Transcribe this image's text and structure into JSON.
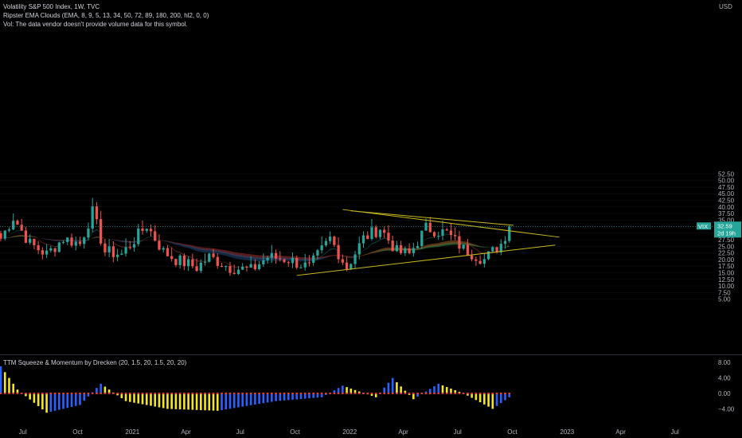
{
  "legend": {
    "title": "Volatility S&P 500 Index, 1W, TVC",
    "indicator": "Ripster EMA Clouds (EMA, 8, 9, 5, 13, 34, 50, 72, 89, 180, 200, hl2, 0, 0)",
    "volume": "Vol: The data vendor doesn't provide volume data for this symbol.",
    "oscillator": "TTM Squeeze & Momentum by Drecken (20, 1.5, 20, 1.5, 20, 20)"
  },
  "currency": "USD",
  "price_axis": [
    "52.50",
    "50.00",
    "47.50",
    "45.00",
    "42.50",
    "40.00",
    "37.50",
    "35.00",
    "32.50",
    "30.00",
    "27.50",
    "25.00",
    "22.50",
    "20.00",
    "17.50",
    "15.00",
    "12.50",
    "10.00",
    "7.50",
    "5.00"
  ],
  "osc_axis": [
    "8.00",
    "4.00",
    "0.00",
    "−4.00"
  ],
  "time_axis": [
    "Jul",
    "Oct",
    "2021",
    "Apr",
    "Jul",
    "Oct",
    "2022",
    "Apr",
    "Jul",
    "Oct",
    "2023",
    "Apr",
    "Jul"
  ],
  "last_price": {
    "symbol": "VIX",
    "value": "32.59",
    "countdown": "2d 19h"
  },
  "colors": {
    "background": "#000000",
    "up": "#26a69a",
    "down": "#ef5350",
    "trendline": "#c8b820",
    "osc_yellow": "#f5e625",
    "osc_blue": "#2962ff",
    "osc_red": "#e53935",
    "ema_blue": "#1e4a7a",
    "ema_orange": "#a0602a"
  },
  "chart_data": {
    "type": "candlestick",
    "series": [
      {
        "name": "Volatility S&P 500 Index, 1W, TVC",
        "type": "candlestick",
        "y_range": [
          2.5,
          55
        ]
      },
      {
        "name": "TTM Squeeze & Momentum by Drecken (20, 1.5, 20, 1.5, 20, 20)",
        "type": "histogram",
        "y_range": [
          -6.5,
          10
        ]
      }
    ],
    "close_path": [
      {
        "d": "2020-05-25",
        "v": 28
      },
      {
        "d": "2020-06-15",
        "v": 36
      },
      {
        "d": "2020-07-13",
        "v": 26
      },
      {
        "d": "2020-08-10",
        "v": 22
      },
      {
        "d": "2020-09-07",
        "v": 28
      },
      {
        "d": "2020-10-05",
        "v": 26
      },
      {
        "d": "2020-10-26",
        "v": 38
      },
      {
        "d": "2020-11-16",
        "v": 23
      },
      {
        "d": "2020-12-14",
        "v": 22
      },
      {
        "d": "2021-01-25",
        "v": 33
      },
      {
        "d": "2021-02-22",
        "v": 23
      },
      {
        "d": "2021-03-15",
        "v": 20
      },
      {
        "d": "2021-04-19",
        "v": 17
      },
      {
        "d": "2021-05-10",
        "v": 21
      },
      {
        "d": "2021-06-14",
        "v": 17
      },
      {
        "d": "2021-07-19",
        "v": 16
      },
      {
        "d": "2021-08-16",
        "v": 21
      },
      {
        "d": "2021-09-20",
        "v": 20
      },
      {
        "d": "2021-10-25",
        "v": 17
      },
      {
        "d": "2021-11-29",
        "v": 28
      },
      {
        "d": "2021-12-27",
        "v": 17
      },
      {
        "d": "2022-01-24",
        "v": 28
      },
      {
        "d": "2022-02-21",
        "v": 32
      },
      {
        "d": "2022-03-21",
        "v": 23
      },
      {
        "d": "2022-04-11",
        "v": 22
      },
      {
        "d": "2022-05-09",
        "v": 32
      },
      {
        "d": "2022-06-13",
        "v": 30
      },
      {
        "d": "2022-07-11",
        "v": 24
      },
      {
        "d": "2022-08-15",
        "v": 20
      },
      {
        "d": "2022-09-12",
        "v": 26
      },
      {
        "d": "2022-09-26",
        "v": 32.59
      }
    ],
    "trendlines": [
      {
        "name": "upper",
        "from": {
          "d": "2021-12-20",
          "v": 39
        },
        "to": {
          "d": "2022-12-19",
          "v": 28.5
        }
      },
      {
        "name": "upper-2",
        "from": {
          "d": "2022-01-03",
          "v": 38.5
        },
        "to": {
          "d": "2022-10-03",
          "v": 33
        }
      },
      {
        "name": "lower",
        "from": {
          "d": "2021-10-04",
          "v": 14
        },
        "to": {
          "d": "2022-12-12",
          "v": 25.5
        }
      }
    ],
    "momentum_path": [
      {
        "d": "2020-05-25",
        "v": 7
      },
      {
        "d": "2020-06-22",
        "v": 1
      },
      {
        "d": "2020-08-10",
        "v": -5
      },
      {
        "d": "2020-10-05",
        "v": -3
      },
      {
        "d": "2020-11-09",
        "v": 2.5
      },
      {
        "d": "2020-12-21",
        "v": -2
      },
      {
        "d": "2021-03-01",
        "v": -4
      },
      {
        "d": "2021-05-24",
        "v": -4.5
      },
      {
        "d": "2021-08-30",
        "v": -2
      },
      {
        "d": "2021-11-15",
        "v": -1
      },
      {
        "d": "2021-12-20",
        "v": 2
      },
      {
        "d": "2022-02-14",
        "v": -1
      },
      {
        "d": "2022-03-14",
        "v": 4
      },
      {
        "d": "2022-04-18",
        "v": -1.5
      },
      {
        "d": "2022-05-30",
        "v": 2.5
      },
      {
        "d": "2022-07-11",
        "v": 0
      },
      {
        "d": "2022-08-29",
        "v": -4
      },
      {
        "d": "2022-09-26",
        "v": -1
      }
    ]
  }
}
